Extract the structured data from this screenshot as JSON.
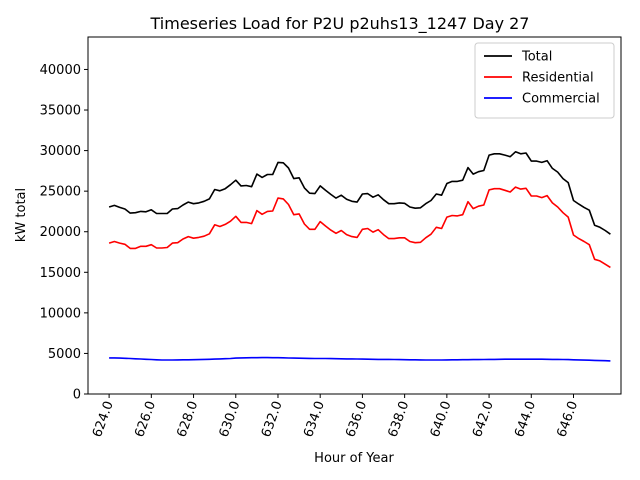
{
  "chart_data": {
    "type": "line",
    "title": "Timeseries Load for P2U p2uhs13_1247  Day 27",
    "xlabel": "Hour of Year",
    "ylabel": "kW total",
    "xlim": [
      623.0,
      648.25
    ],
    "ylim": [
      0,
      44000
    ],
    "xticks": [
      624,
      626,
      628,
      630,
      632,
      634,
      636,
      638,
      640,
      642,
      644,
      646
    ],
    "xtick_labels": [
      "624.0",
      "626.0",
      "628.0",
      "630.0",
      "632.0",
      "634.0",
      "636.0",
      "638.0",
      "640.0",
      "642.0",
      "644.0",
      "646.0"
    ],
    "yticks": [
      0,
      5000,
      10000,
      15000,
      20000,
      25000,
      30000,
      35000,
      40000
    ],
    "ytick_labels": [
      "0",
      "5000",
      "10000",
      "15000",
      "20000",
      "25000",
      "30000",
      "35000",
      "40000"
    ],
    "legend_position": "top-right",
    "x_start": 624.0,
    "x_step": 0.25,
    "series": [
      {
        "name": "Total",
        "color": "#000000",
        "values": [
          23050,
          23250,
          23000,
          22800,
          22300,
          22350,
          22500,
          22450,
          22700,
          22250,
          22250,
          22250,
          22800,
          22850,
          23300,
          23650,
          23450,
          23550,
          23750,
          24050,
          25200,
          25050,
          25300,
          25800,
          26350,
          25650,
          25700,
          25550,
          27100,
          26700,
          27050,
          27050,
          28550,
          28500,
          27850,
          26550,
          26650,
          25400,
          24750,
          24700,
          25650,
          25100,
          24600,
          24150,
          24500,
          24000,
          23750,
          23650,
          24650,
          24700,
          24250,
          24550,
          23950,
          23450,
          23450,
          23550,
          23500,
          23050,
          22900,
          22950,
          23450,
          23850,
          24650,
          24500,
          25950,
          26200,
          26200,
          26350,
          27900,
          27100,
          27400,
          27550,
          29450,
          29600,
          29600,
          29450,
          29250,
          29850,
          29600,
          29700,
          28700,
          28700,
          28550,
          28750,
          27800,
          27350,
          26550,
          26050,
          23850,
          23400,
          23000,
          22650,
          20800,
          20550,
          20150,
          19700
        ]
      },
      {
        "name": "Residential",
        "color": "#ff0000",
        "values": [
          18600,
          18800,
          18600,
          18450,
          17950,
          17950,
          18200,
          18200,
          18400,
          18000,
          18000,
          18050,
          18600,
          18650,
          19100,
          19400,
          19200,
          19300,
          19450,
          19750,
          20850,
          20650,
          20900,
          21300,
          21900,
          21150,
          21150,
          21000,
          22600,
          22150,
          22500,
          22550,
          24150,
          24050,
          23350,
          22100,
          22200,
          20950,
          20300,
          20300,
          21250,
          20700,
          20200,
          19800,
          20150,
          19650,
          19400,
          19300,
          20300,
          20400,
          19950,
          20250,
          19650,
          19150,
          19150,
          19250,
          19250,
          18800,
          18650,
          18700,
          19250,
          19700,
          20550,
          20400,
          21800,
          22000,
          21950,
          22100,
          23700,
          22850,
          23150,
          23300,
          25150,
          25300,
          25300,
          25100,
          24900,
          25500,
          25250,
          25350,
          24400,
          24400,
          24200,
          24450,
          23550,
          23050,
          22350,
          21800,
          19600,
          19150,
          18800,
          18400,
          16600,
          16400,
          16000,
          15600
        ]
      },
      {
        "name": "Commercial",
        "color": "#0000ff",
        "values": [
          4450,
          4450,
          4420,
          4400,
          4370,
          4340,
          4310,
          4280,
          4250,
          4220,
          4190,
          4190,
          4190,
          4200,
          4210,
          4220,
          4230,
          4240,
          4260,
          4280,
          4300,
          4320,
          4350,
          4380,
          4430,
          4450,
          4460,
          4470,
          4480,
          4490,
          4490,
          4480,
          4470,
          4460,
          4440,
          4420,
          4410,
          4400,
          4390,
          4380,
          4380,
          4370,
          4360,
          4350,
          4340,
          4330,
          4320,
          4310,
          4300,
          4290,
          4280,
          4270,
          4260,
          4260,
          4250,
          4240,
          4230,
          4220,
          4210,
          4200,
          4190,
          4190,
          4190,
          4190,
          4200,
          4210,
          4220,
          4230,
          4230,
          4240,
          4240,
          4250,
          4260,
          4270,
          4280,
          4290,
          4290,
          4290,
          4290,
          4290,
          4290,
          4290,
          4290,
          4280,
          4270,
          4260,
          4250,
          4240,
          4220,
          4200,
          4180,
          4160,
          4140,
          4120,
          4100,
          4080
        ]
      }
    ]
  }
}
